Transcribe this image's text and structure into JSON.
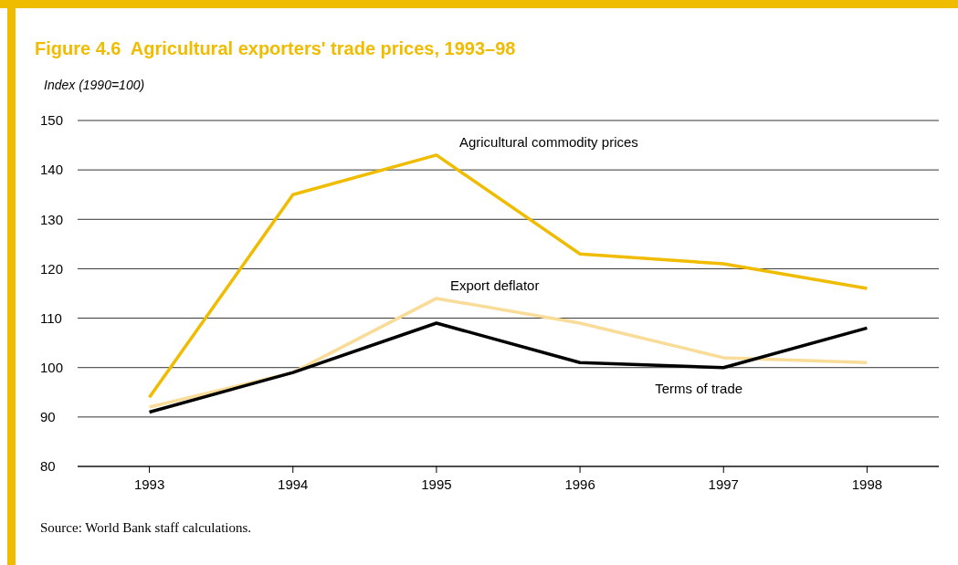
{
  "chart_data": {
    "type": "line",
    "title": "Figure 4.6  Agricultural exporters' trade prices, 1993–98",
    "ylabel": "Index (1990=100)",
    "categories": [
      "1993",
      "1994",
      "1995",
      "1996",
      "1997",
      "1998"
    ],
    "series": [
      {
        "name": "Agricultural commodity prices",
        "color": "#f0bc00",
        "values": [
          94,
          135,
          143,
          123,
          121,
          116
        ]
      },
      {
        "name": "Export deflator",
        "color": "#f8dc98",
        "values": [
          92,
          99,
          114,
          109,
          102,
          101
        ]
      },
      {
        "name": "Terms of trade",
        "color": "#000000",
        "values": [
          91,
          99,
          109,
          101,
          100,
          108
        ]
      }
    ],
    "ylim": [
      80,
      150
    ],
    "yticks": [
      80,
      90,
      100,
      110,
      120,
      130,
      140,
      150
    ],
    "grid": "y",
    "marker": "none",
    "line_style": "solid",
    "annotations": [
      "Source: World Bank staff calculations."
    ]
  }
}
